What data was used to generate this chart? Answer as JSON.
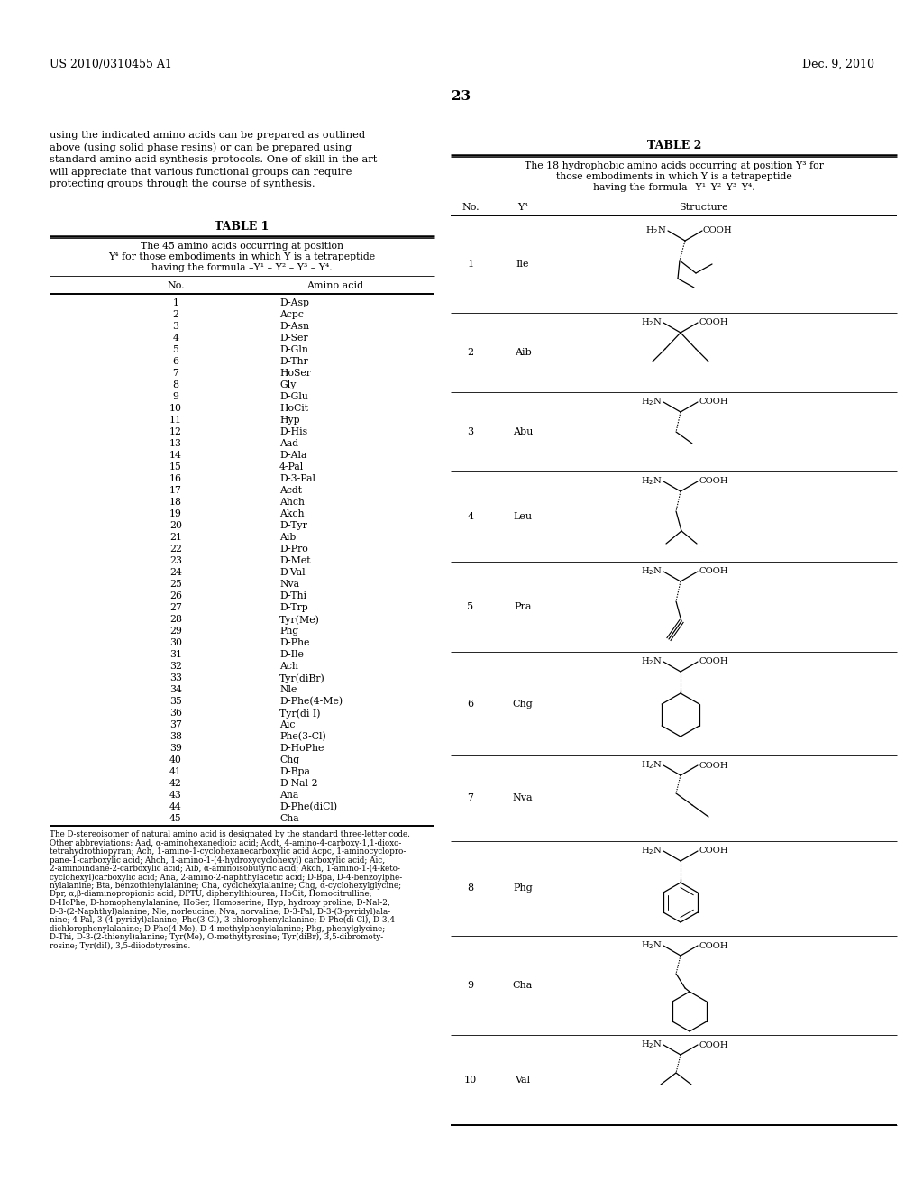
{
  "header_left": "US 2010/0310455 A1",
  "header_right": "Dec. 9, 2010",
  "page_number": "23",
  "intro_text": "using the indicated amino acids can be prepared as outlined\nabove (using solid phase resins) or can be prepared using\nstandard amino acid synthesis protocols. One of skill in the art\nwill appreciate that various functional groups can require\nprotecting groups through the course of synthesis.",
  "table1_title": "TABLE 1",
  "table1_subtitle_lines": [
    "The 45 amino acids occurring at position",
    "Y⁴ for those embodiments in which Y is a tetrapeptide",
    "having the formula –Y¹ – Y² – Y³ – Y⁴."
  ],
  "table1_col1": "No.",
  "table1_col2": "Amino acid",
  "table1_data": [
    [
      1,
      "D-Asp"
    ],
    [
      2,
      "Acpc"
    ],
    [
      3,
      "D-Asn"
    ],
    [
      4,
      "D-Ser"
    ],
    [
      5,
      "D-Gln"
    ],
    [
      6,
      "D-Thr"
    ],
    [
      7,
      "HoSer"
    ],
    [
      8,
      "Gly"
    ],
    [
      9,
      "D-Glu"
    ],
    [
      10,
      "HoCit"
    ],
    [
      11,
      "Hyp"
    ],
    [
      12,
      "D-His"
    ],
    [
      13,
      "Aad"
    ],
    [
      14,
      "D-Ala"
    ],
    [
      15,
      "4-Pal"
    ],
    [
      16,
      "D-3-Pal"
    ],
    [
      17,
      "Acdt"
    ],
    [
      18,
      "Ahch"
    ],
    [
      19,
      "Akch"
    ],
    [
      20,
      "D-Tyr"
    ],
    [
      21,
      "Aib"
    ],
    [
      22,
      "D-Pro"
    ],
    [
      23,
      "D-Met"
    ],
    [
      24,
      "D-Val"
    ],
    [
      25,
      "Nva"
    ],
    [
      26,
      "D-Thi"
    ],
    [
      27,
      "D-Trp"
    ],
    [
      28,
      "Tyr(Me)"
    ],
    [
      29,
      "Phg"
    ],
    [
      30,
      "D-Phe"
    ],
    [
      31,
      "D-Ile"
    ],
    [
      32,
      "Ach"
    ],
    [
      33,
      "Tyr(diBr)"
    ],
    [
      34,
      "Nle"
    ],
    [
      35,
      "D-Phe(4-Me)"
    ],
    [
      36,
      "Tyr(di I)"
    ],
    [
      37,
      "Aic"
    ],
    [
      38,
      "Phe(3-Cl)"
    ],
    [
      39,
      "D-HoPhe"
    ],
    [
      40,
      "Chg"
    ],
    [
      41,
      "D-Bpa"
    ],
    [
      42,
      "D-Nal-2"
    ],
    [
      43,
      "Ana"
    ],
    [
      44,
      "D-Phe(diCl)"
    ],
    [
      45,
      "Cha"
    ]
  ],
  "table1_footnote_lines": [
    "The D-stereoisomer of natural amino acid is designated by the standard three-letter code.",
    "Other abbreviations: Aad, α-aminohexanedioic acid; Acdt, 4-amino-4-carboxy-1,1-dioxo-",
    "tetrahydrothiopyran; Ach, 1-amino-1-cyclohexanecarboxylic acid Acpc, 1-aminocyclopro-",
    "pane-1-carboxylic acid; Ahch, 1-amino-1-(4-hydroxycyclohexyl) carboxylic acid; Aic,",
    "2-aminoindane-2-carboxylic acid; Aib, α-aminoisobutyric acid; Akch, 1-amino-1-(4-keto-",
    "cyclohexyl)carboxylic acid; Ana, 2-amino-2-naphthylacetic acid; D-Bpa, D-4-benzoylphe-",
    "nylalanine; Bta, benzothienylalanine; Cha, cyclohexylalanine; Chg, α-cyclohexylglycine;",
    "Dpr, α,β-diaminopropionic acid; DPTU, diphenylthiourea; HoCit, Homocitrulline;",
    "D-HoPhe, D-homophenylalanine; HoSer, Homoserine; Hyp, hydroxy proline; D-Nal-2,",
    "D-3-(2-Naphthyl)alanine; Nle, norleucine; Nva, norvaline; D-3-Pal, D-3-(3-pyridyl)ala-",
    "nine; 4-Pal, 3-(4-pyridyl)alanine; Phe(3-Cl), 3-chlorophenylalanine; D-Phe(di Cl), D-3,4-",
    "dichlorophenylalanine; D-Phe(4-Me), D-4-methylphenylalanine; Phg, phenylglycine;",
    "D-Thi, D-3-(2-thienyl)alanine; Tyr(Me), O-methyltyrosine; Tyr(diBr), 3,5-dibromoty-",
    "rosine; Tyr(diI), 3,5-diiodotyrosine."
  ],
  "table2_title": "TABLE 2",
  "table2_subtitle_lines": [
    "The 18 hydrophobic amino acids occurring at position Y³ for",
    "those embodiments in which Y is a tetrapeptide",
    "having the formula –Y¹–Y²–Y³–Y⁴."
  ],
  "table2_col1": "No.",
  "table2_col2": "Y³",
  "table2_col3": "Structure",
  "table2_data": [
    [
      1,
      "Ile"
    ],
    [
      2,
      "Aib"
    ],
    [
      3,
      "Abu"
    ],
    [
      4,
      "Leu"
    ],
    [
      5,
      "Pra"
    ],
    [
      6,
      "Chg"
    ],
    [
      7,
      "Nva"
    ],
    [
      8,
      "Phg"
    ],
    [
      9,
      "Cha"
    ],
    [
      10,
      "Val"
    ]
  ],
  "bg_color": "#ffffff",
  "text_color": "#000000"
}
